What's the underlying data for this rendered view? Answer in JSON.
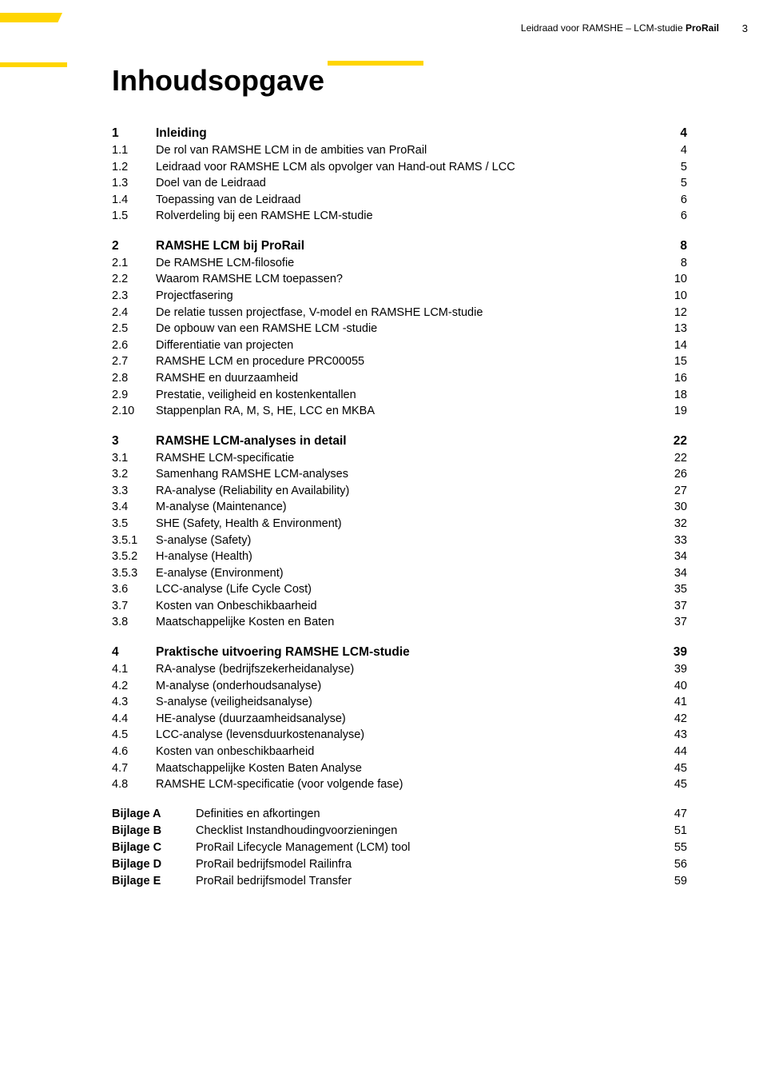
{
  "page_text_color": "#000000",
  "page_background": "#ffffff",
  "accent_color": "#ffd500",
  "running_head_prefix": "Leidraad voor RAMSHE – LCM-studie ",
  "running_head_bold": "ProRail",
  "page_number": "3",
  "title": "Inhoudsopgave",
  "sections": [
    {
      "heading": {
        "num": "1",
        "label": "Inleiding",
        "pg": "4"
      },
      "rows": [
        {
          "num": "1.1",
          "label": "De rol van RAMSHE LCM in de ambities van ProRail",
          "pg": "4"
        },
        {
          "num": "1.2",
          "label": "Leidraad voor RAMSHE LCM als opvolger van Hand-out RAMS / LCC",
          "pg": "5"
        },
        {
          "num": "1.3",
          "label": "Doel van de Leidraad",
          "pg": "5"
        },
        {
          "num": "1.4",
          "label": "Toepassing van de Leidraad",
          "pg": "6"
        },
        {
          "num": "1.5",
          "label": "Rolverdeling bij een RAMSHE LCM-studie",
          "pg": "6"
        }
      ]
    },
    {
      "heading": {
        "num": "2",
        "label": "RAMSHE LCM bij ProRail",
        "pg": "8"
      },
      "rows": [
        {
          "num": "2.1",
          "label": "De RAMSHE LCM-filosofie",
          "pg": "8"
        },
        {
          "num": "2.2",
          "label": "Waarom RAMSHE LCM toepassen?",
          "pg": "10"
        },
        {
          "num": "2.3",
          "label": "Projectfasering",
          "pg": "10"
        },
        {
          "num": "2.4",
          "label": "De relatie tussen projectfase, V-model en RAMSHE LCM-studie",
          "pg": "12"
        },
        {
          "num": "2.5",
          "label": "De opbouw van een RAMSHE LCM -studie",
          "pg": "13"
        },
        {
          "num": "2.6",
          "label": "Differentiatie van projecten",
          "pg": "14"
        },
        {
          "num": "2.7",
          "label": "RAMSHE LCM en procedure PRC00055",
          "pg": "15"
        },
        {
          "num": "2.8",
          "label": "RAMSHE en duurzaamheid",
          "pg": "16"
        },
        {
          "num": "2.9",
          "label": "Prestatie, veiligheid en kostenkentallen",
          "pg": "18"
        },
        {
          "num": "2.10",
          "label": "Stappenplan RA, M, S, HE, LCC en MKBA",
          "pg": "19"
        }
      ]
    },
    {
      "heading": {
        "num": "3",
        "label": "RAMSHE LCM-analyses in detail",
        "pg": "22"
      },
      "rows": [
        {
          "num": "3.1",
          "label": "RAMSHE LCM-specificatie",
          "pg": "22"
        },
        {
          "num": "3.2",
          "label": "Samenhang RAMSHE LCM-analyses",
          "pg": "26"
        },
        {
          "num": "3.3",
          "label": "RA-analyse (Reliability en Availability)",
          "pg": "27"
        },
        {
          "num": "3.4",
          "label": "M-analyse (Maintenance)",
          "pg": "30"
        },
        {
          "num": "3.5",
          "label": "SHE (Safety, Health & Environment)",
          "pg": "32"
        },
        {
          "num": "3.5.1",
          "label": "S-analyse (Safety)",
          "pg": "33"
        },
        {
          "num": "3.5.2",
          "label": "H-analyse (Health)",
          "pg": "34"
        },
        {
          "num": "3.5.3",
          "label": "E-analyse (Environment)",
          "pg": "34"
        },
        {
          "num": "3.6",
          "label": "LCC-analyse (Life Cycle Cost)",
          "pg": "35"
        },
        {
          "num": "3.7",
          "label": "Kosten van Onbeschikbaarheid",
          "pg": "37"
        },
        {
          "num": "3.8",
          "label": "Maatschappelijke Kosten en Baten",
          "pg": "37"
        }
      ]
    },
    {
      "heading": {
        "num": "4",
        "label": "Praktische uitvoering RAMSHE LCM-studie",
        "pg": "39"
      },
      "rows": [
        {
          "num": "4.1",
          "label": "RA-analyse (bedrijfszekerheidanalyse)",
          "pg": "39"
        },
        {
          "num": "4.2",
          "label": "M-analyse (onderhoudsanalyse)",
          "pg": "40"
        },
        {
          "num": "4.3",
          "label": "S-analyse (veiligheidsanalyse)",
          "pg": "41"
        },
        {
          "num": "4.4",
          "label": "HE-analyse (duurzaamheidsanalyse)",
          "pg": "42"
        },
        {
          "num": "4.5",
          "label": "LCC-analyse (levensduurkostenanalyse)",
          "pg": "43"
        },
        {
          "num": "4.6",
          "label": "Kosten van onbeschikbaarheid",
          "pg": "44"
        },
        {
          "num": "4.7",
          "label": "Maatschappelijke Kosten Baten Analyse",
          "pg": "45"
        },
        {
          "num": "4.8",
          "label": "RAMSHE LCM-specificatie (voor volgende fase)",
          "pg": "45"
        }
      ]
    }
  ],
  "appendices": [
    {
      "num": "Bijlage A",
      "label": "Definities en afkortingen",
      "pg": "47"
    },
    {
      "num": "Bijlage B",
      "label": "Checklist Instandhoudingvoorzieningen",
      "pg": "51"
    },
    {
      "num": "Bijlage C",
      "label": "ProRail Lifecycle Management (LCM) tool",
      "pg": "55"
    },
    {
      "num": "Bijlage D",
      "label": "ProRail bedrijfsmodel Railinfra",
      "pg": "56"
    },
    {
      "num": "Bijlage E",
      "label": "ProRail bedrijfsmodel Transfer",
      "pg": "59"
    }
  ]
}
